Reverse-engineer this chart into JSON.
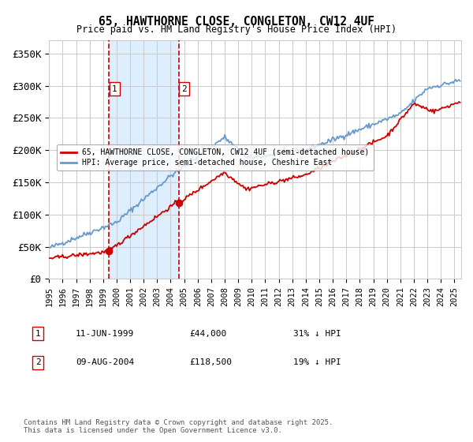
{
  "title": "65, HAWTHORNE CLOSE, CONGLETON, CW12 4UF",
  "subtitle": "Price paid vs. HM Land Registry's House Price Index (HPI)",
  "legend_line1": "65, HAWTHORNE CLOSE, CONGLETON, CW12 4UF (semi-detached house)",
  "legend_line2": "HPI: Average price, semi-detached house, Cheshire East",
  "footer": "Contains HM Land Registry data © Crown copyright and database right 2025.\nThis data is licensed under the Open Government Licence v3.0.",
  "transactions": [
    {
      "num": 1,
      "date": "11-JUN-1999",
      "price": 44000,
      "hpi_pct": "31% ↓ HPI",
      "year": 1999.45
    },
    {
      "num": 2,
      "date": "09-AUG-2004",
      "price": 118500,
      "hpi_pct": "19% ↓ HPI",
      "year": 2004.61
    }
  ],
  "red_color": "#cc0000",
  "blue_color": "#6699cc",
  "shaded_color": "#ddeeff",
  "vline_color": "#cc0000",
  "background_color": "#ffffff",
  "grid_color": "#cccccc",
  "ylim": [
    0,
    370000
  ],
  "yticks": [
    0,
    50000,
    100000,
    150000,
    200000,
    250000,
    300000,
    350000
  ],
  "ytick_labels": [
    "£0",
    "£50K",
    "£100K",
    "£150K",
    "£200K",
    "£250K",
    "£300K",
    "£350K"
  ],
  "xlim_start": 1995.0,
  "xlim_end": 2025.5
}
